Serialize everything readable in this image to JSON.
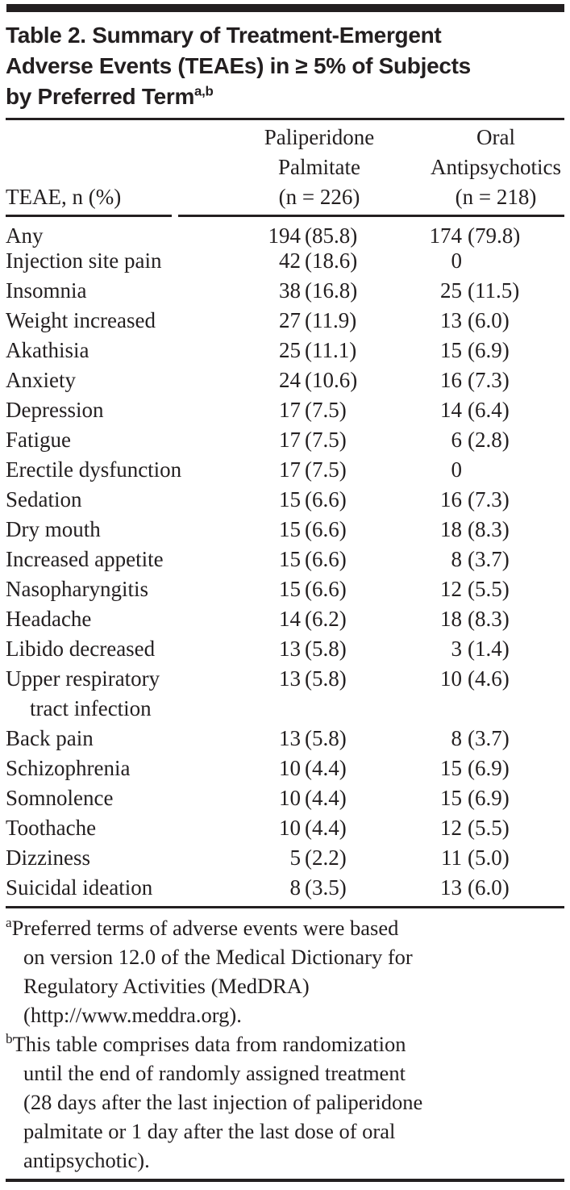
{
  "chart_data": {
    "type": "table",
    "title": "Table 2. Summary of Treatment-Emergent\nAdverse Events (TEAEs) in ≥ 5% of Subjects\nby Preferred Term",
    "title_superscript": "a,b",
    "columns": [
      "TEAE, n (%)",
      "Paliperidone\nPalmitate\n(n = 226)",
      "Oral\nAntipsychotics\n(n = 218)"
    ],
    "rows": [
      {
        "term": "Any",
        "term2": "",
        "pp_n": "194",
        "pp_pct": "(85.8)",
        "oral_n": "174",
        "oral_pct": "(79.8)"
      },
      {
        "term": "Injection site pain",
        "term2": "",
        "pp_n": "42",
        "pp_pct": "(18.6)",
        "oral_n": "0",
        "oral_pct": ""
      },
      {
        "term": "Insomnia",
        "term2": "",
        "pp_n": "38",
        "pp_pct": "(16.8)",
        "oral_n": "25",
        "oral_pct": "(11.5)"
      },
      {
        "term": "Weight increased",
        "term2": "",
        "pp_n": "27",
        "pp_pct": "(11.9)",
        "oral_n": "13",
        "oral_pct": "(6.0)"
      },
      {
        "term": "Akathisia",
        "term2": "",
        "pp_n": "25",
        "pp_pct": "(11.1)",
        "oral_n": "15",
        "oral_pct": "(6.9)"
      },
      {
        "term": "Anxiety",
        "term2": "",
        "pp_n": "24",
        "pp_pct": "(10.6)",
        "oral_n": "16",
        "oral_pct": "(7.3)"
      },
      {
        "term": "Depression",
        "term2": "",
        "pp_n": "17",
        "pp_pct": "(7.5)",
        "oral_n": "14",
        "oral_pct": "(6.4)"
      },
      {
        "term": "Fatigue",
        "term2": "",
        "pp_n": "17",
        "pp_pct": "(7.5)",
        "oral_n": "6",
        "oral_pct": "(2.8)"
      },
      {
        "term": "Erectile dysfunction",
        "term2": "",
        "pp_n": "17",
        "pp_pct": "(7.5)",
        "oral_n": "0",
        "oral_pct": ""
      },
      {
        "term": "Sedation",
        "term2": "",
        "pp_n": "15",
        "pp_pct": "(6.6)",
        "oral_n": "16",
        "oral_pct": "(7.3)"
      },
      {
        "term": "Dry mouth",
        "term2": "",
        "pp_n": "15",
        "pp_pct": "(6.6)",
        "oral_n": "18",
        "oral_pct": "(8.3)"
      },
      {
        "term": "Increased appetite",
        "term2": "",
        "pp_n": "15",
        "pp_pct": "(6.6)",
        "oral_n": "8",
        "oral_pct": "(3.7)"
      },
      {
        "term": "Nasopharyngitis",
        "term2": "",
        "pp_n": "15",
        "pp_pct": "(6.6)",
        "oral_n": "12",
        "oral_pct": "(5.5)"
      },
      {
        "term": "Headache",
        "term2": "",
        "pp_n": "14",
        "pp_pct": "(6.2)",
        "oral_n": "18",
        "oral_pct": "(8.3)"
      },
      {
        "term": "Libido decreased",
        "term2": "",
        "pp_n": "13",
        "pp_pct": "(5.8)",
        "oral_n": "3",
        "oral_pct": "(1.4)"
      },
      {
        "term": "Upper respiratory",
        "term2": "tract infection",
        "pp_n": "13",
        "pp_pct": "(5.8)",
        "oral_n": "10",
        "oral_pct": "(4.6)"
      },
      {
        "term": "Back pain",
        "term2": "",
        "pp_n": "13",
        "pp_pct": "(5.8)",
        "oral_n": "8",
        "oral_pct": "(3.7)"
      },
      {
        "term": "Schizophrenia",
        "term2": "",
        "pp_n": "10",
        "pp_pct": "(4.4)",
        "oral_n": "15",
        "oral_pct": "(6.9)"
      },
      {
        "term": "Somnolence",
        "term2": "",
        "pp_n": "10",
        "pp_pct": "(4.4)",
        "oral_n": "15",
        "oral_pct": "(6.9)"
      },
      {
        "term": "Toothache",
        "term2": "",
        "pp_n": "10",
        "pp_pct": "(4.4)",
        "oral_n": "12",
        "oral_pct": "(5.5)"
      },
      {
        "term": "Dizziness",
        "term2": "",
        "pp_n": "5",
        "pp_pct": "(2.2)",
        "oral_n": "11",
        "oral_pct": "(5.0)"
      },
      {
        "term": "Suicidal ideation",
        "term2": "",
        "pp_n": "8",
        "pp_pct": "(3.5)",
        "oral_n": "13",
        "oral_pct": "(6.0)"
      }
    ],
    "footnotes": [
      {
        "marker": "a",
        "text": "Preferred terms of adverse events were based\non version 12.0 of the Medical Dictionary for\nRegulatory Activities (MedDRA)\n(http://www.meddra.org)."
      },
      {
        "marker": "b",
        "text": "This table comprises data from randomization\nuntil the end of randomly assigned treatment\n(28 days after the last injection of paliperidone\npalmitate or 1 day after the last dose of oral\nantipsychotic)."
      }
    ],
    "colors": {
      "text": "#231f20",
      "rule": "#231f20",
      "background": "#ffffff"
    }
  }
}
